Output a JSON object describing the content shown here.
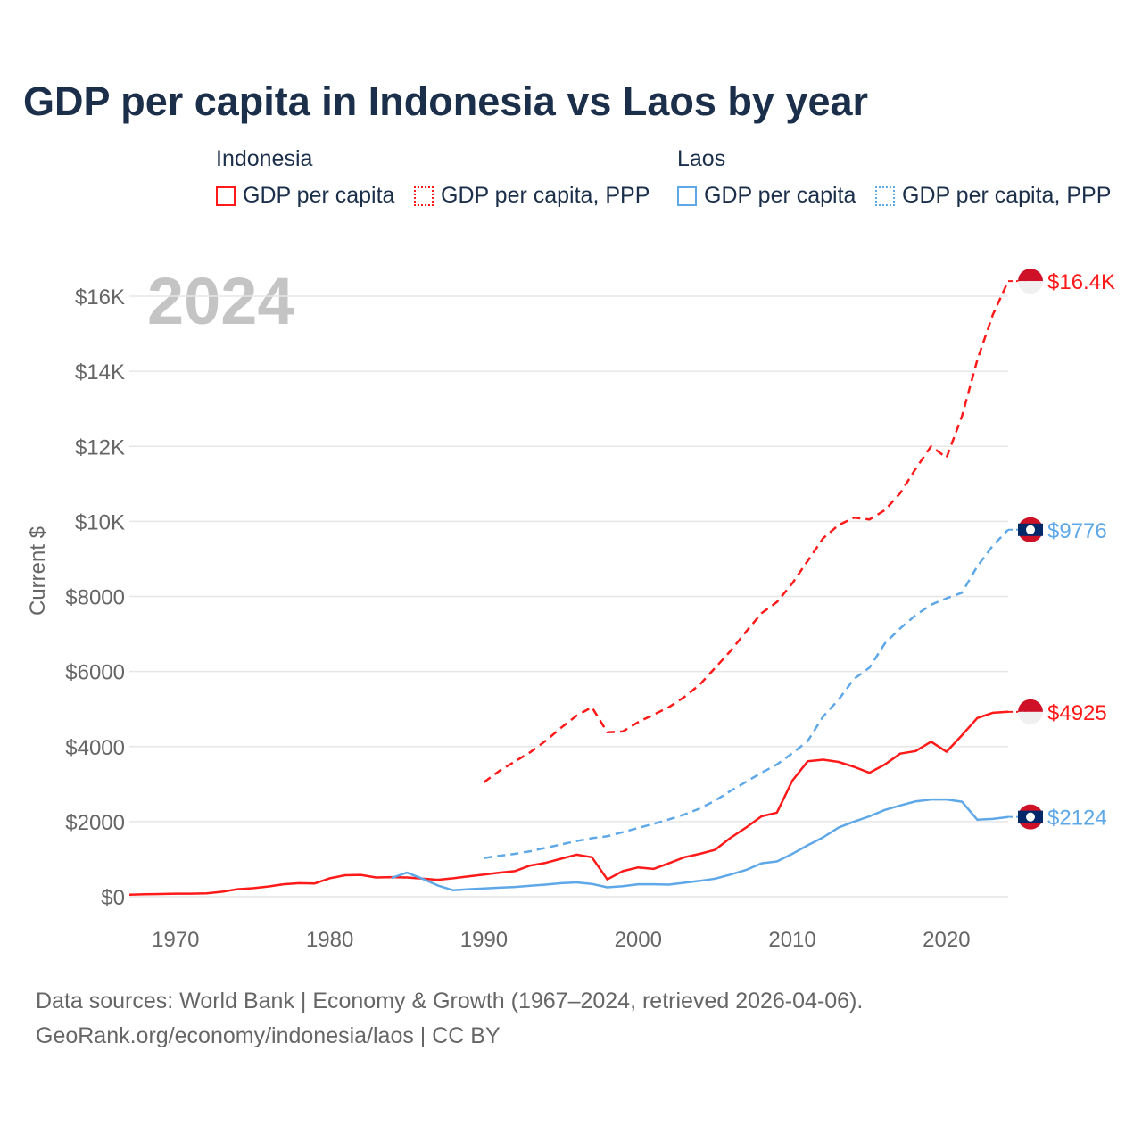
{
  "title": "GDP per capita in Indonesia vs Laos by year",
  "legend": {
    "groups": [
      {
        "name": "Indonesia",
        "items": [
          "GDP per capita",
          "GDP per capita, PPP"
        ]
      },
      {
        "name": "Laos",
        "items": [
          "GDP per capita",
          "GDP per capita, PPP"
        ]
      }
    ]
  },
  "year_label": "2024",
  "footer": {
    "line1": "Data sources: World Bank | Economy & Growth (1967–2024, retrieved 2026-04-06).",
    "line2": "GeoRank.org/economy/indonesia/laos | CC BY"
  },
  "chart_data": {
    "type": "line",
    "title": "GDP per capita in Indonesia vs Laos by year",
    "ylabel": "Current $",
    "xlim": [
      1967,
      2024
    ],
    "ylim": [
      0,
      17000
    ],
    "grid": true,
    "legend_placement": "top",
    "x_ticks": [
      1970,
      1980,
      1990,
      2000,
      2010,
      2020
    ],
    "y_ticks": [
      0,
      2000,
      4000,
      6000,
      8000,
      10000,
      12000,
      14000,
      16000
    ],
    "y_tick_labels": [
      "$0",
      "$2000",
      "$4000",
      "$6000",
      "$8000",
      "$10K",
      "$12K",
      "$14K",
      "$16K"
    ],
    "colors": {
      "Indonesia": "#ff1a1a",
      "Laos": "#5fa8e8"
    },
    "series": [
      {
        "name": "Indonesia GDP per capita",
        "country": "Indonesia",
        "style": "solid",
        "start": 1967,
        "end_label": "$4925",
        "values": [
          54,
          65,
          72,
          80,
          80,
          90,
          130,
          200,
          225,
          270,
          330,
          360,
          350,
          490,
          570,
          580,
          510,
          520,
          510,
          480,
          450,
          490,
          540,
          590,
          640,
          680,
          830,
          900,
          1010,
          1120,
          1050,
          460,
          680,
          780,
          740,
          890,
          1050,
          1140,
          1250,
          1570,
          1840,
          2140,
          2240,
          3090,
          3610,
          3650,
          3590,
          3460,
          3300,
          3520,
          3810,
          3880,
          4130,
          3860,
          4300,
          4760,
          4900,
          4925
        ]
      },
      {
        "name": "Indonesia GDP per capita, PPP",
        "country": "Indonesia",
        "style": "dashed",
        "start": 1990,
        "end_label": "$16.4K",
        "values": [
          3050,
          3350,
          3600,
          3850,
          4150,
          4500,
          4820,
          5050,
          4380,
          4400,
          4650,
          4850,
          5050,
          5320,
          5650,
          6100,
          6550,
          7060,
          7550,
          7850,
          8350,
          8950,
          9550,
          9900,
          10100,
          10050,
          10300,
          10750,
          11400,
          12000,
          11700,
          12800,
          14300,
          15500,
          16400
        ]
      },
      {
        "name": "Laos GDP per capita",
        "country": "Laos",
        "style": "solid",
        "start": 1984,
        "end_label": "$2124",
        "values": [
          500,
          640,
          480,
          300,
          170,
          200,
          220,
          240,
          260,
          290,
          320,
          360,
          380,
          340,
          250,
          280,
          330,
          330,
          320,
          370,
          420,
          480,
          590,
          710,
          890,
          940,
          1140,
          1370,
          1580,
          1840,
          2000,
          2140,
          2310,
          2430,
          2540,
          2590,
          2590,
          2530,
          2050,
          2070,
          2124
        ]
      },
      {
        "name": "Laos GDP per capita, PPP",
        "country": "Laos",
        "style": "dashed",
        "start": 1990,
        "end_label": "$9776",
        "values": [
          1030,
          1090,
          1140,
          1210,
          1300,
          1390,
          1480,
          1560,
          1610,
          1720,
          1830,
          1940,
          2060,
          2190,
          2350,
          2560,
          2820,
          3060,
          3300,
          3520,
          3820,
          4150,
          4800,
          5250,
          5800,
          6100,
          6750,
          7150,
          7500,
          7780,
          7950,
          8100,
          8800,
          9350,
          9776
        ]
      }
    ]
  }
}
